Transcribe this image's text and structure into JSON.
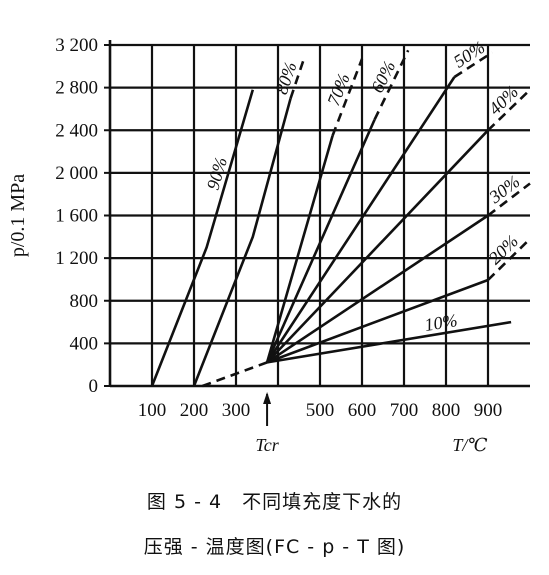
{
  "chart_data": {
    "type": "line",
    "xlim": [
      0,
      1000
    ],
    "ylim": [
      0,
      3200
    ],
    "x_tick_labels": [
      {
        "value": 100,
        "label": "100"
      },
      {
        "value": 200,
        "label": "200"
      },
      {
        "value": 300,
        "label": "300"
      },
      {
        "value": 500,
        "label": "500"
      },
      {
        "value": 600,
        "label": "600"
      },
      {
        "value": 700,
        "label": "700"
      },
      {
        "value": 800,
        "label": "800"
      },
      {
        "value": 900,
        "label": "900"
      }
    ],
    "y_ticks": [
      0,
      400,
      800,
      1200,
      1600,
      2000,
      2400,
      2800,
      3200
    ],
    "y_tick_labels": [
      "0",
      "400",
      "800",
      "1 200",
      "1 600",
      "2 000",
      "2 400",
      "2 800",
      "3 200"
    ],
    "ylabel": "p/0.1 MPa",
    "xlabel": "T/℃",
    "tcr_label": "Tcr",
    "tcr_value": 374,
    "grid": true,
    "series": [
      {
        "name": "10%",
        "solid": [
          [
            374,
            221
          ],
          [
            955,
            600
          ]
        ],
        "dashed": []
      },
      {
        "name": "20%",
        "solid": [
          [
            374,
            221
          ],
          [
            900,
            995
          ]
        ],
        "dashed": [
          [
            900,
            995
          ],
          [
            1000,
            1380
          ]
        ]
      },
      {
        "name": "30%",
        "solid": [
          [
            374,
            221
          ],
          [
            900,
            1600
          ]
        ],
        "dashed": [
          [
            900,
            1600
          ],
          [
            1000,
            1900
          ]
        ]
      },
      {
        "name": "40%",
        "solid": [
          [
            374,
            221
          ],
          [
            900,
            2400
          ]
        ],
        "dashed": [
          [
            900,
            2400
          ],
          [
            1000,
            2780
          ]
        ]
      },
      {
        "name": "50%",
        "solid": [
          [
            374,
            221
          ],
          [
            820,
            2900
          ]
        ],
        "dashed": [
          [
            820,
            2900
          ],
          [
            910,
            3130
          ]
        ]
      },
      {
        "name": "60%",
        "solid": [
          [
            374,
            221
          ],
          [
            630,
            2500
          ]
        ],
        "dashed": [
          [
            630,
            2500
          ],
          [
            710,
            3150
          ]
        ]
      },
      {
        "name": "70%",
        "solid": [
          [
            374,
            221
          ],
          [
            530,
            2350
          ]
        ],
        "dashed": [
          [
            530,
            2350
          ],
          [
            600,
            3070
          ]
        ]
      },
      {
        "name": "80%",
        "solid": [
          [
            200,
            0
          ],
          [
            340,
            1400
          ],
          [
            430,
            2700
          ]
        ],
        "dashed": [
          [
            430,
            2700
          ],
          [
            460,
            3050
          ]
        ]
      },
      {
        "name": "90%",
        "solid": [
          [
            100,
            0
          ],
          [
            230,
            1300
          ],
          [
            340,
            2780
          ]
        ],
        "dashed": []
      }
    ],
    "lower_dashed": [
      [
        220,
        0
      ],
      [
        374,
        221
      ]
    ]
  },
  "caption": {
    "line1": "图 5 - 4　不同填充度下水的",
    "line2": "压强 - 温度图(FC - p - T 图)"
  }
}
